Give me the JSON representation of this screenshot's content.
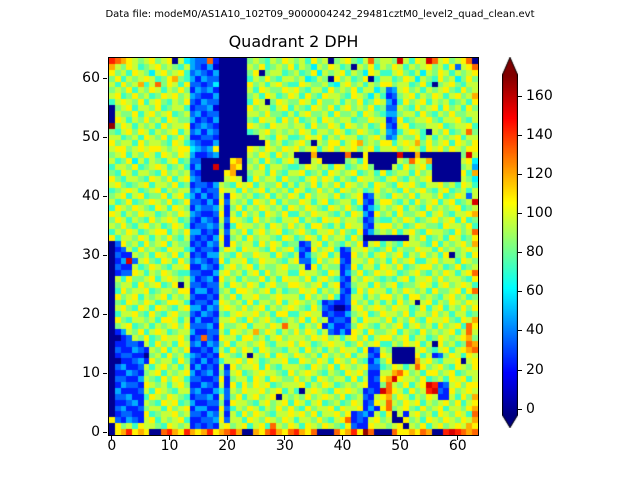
{
  "figure": {
    "suptitle": "Data file: modeM0/AS1A10_102T09_9000004242_29481cztM0_level2_quad_clean.evt",
    "title": "Quadrant 2 DPH",
    "background": "#ffffff"
  },
  "chart_data": {
    "type": "heatmap",
    "title": "Quadrant 2 DPH",
    "xlabel": "",
    "ylabel": "",
    "x_ticks": [
      0,
      10,
      20,
      30,
      40,
      50,
      60
    ],
    "y_ticks": [
      0,
      10,
      20,
      30,
      40,
      50,
      60
    ],
    "x_range": [
      -0.5,
      63.5
    ],
    "y_range": [
      -0.5,
      63.5
    ],
    "grid": false,
    "legend": "none",
    "colormap": "jet",
    "colorbar": {
      "ticks": [
        0,
        20,
        40,
        60,
        80,
        100,
        120,
        140,
        160
      ],
      "vmin": -3,
      "vmax": 171,
      "extend": "both"
    },
    "grid_size": [
      64,
      64
    ],
    "cell_value_step": 12,
    "cell_encoding": "each character is a hex digit; cell value in detector counts = digit * 12",
    "rows_top_to_bottom": [
      "CBA98789789085433B200000787687987869780789768B7887D8698DB89789B0",
      "A8798678978768432410000087967879687587986708796879868789786938 9B",
      "97869875897896343240000079078867867958789687598668976858798687 89",
      "79687898679A76424330000068797688785687097867906886798587697857 97",
      "86978A68B79869332350000097868976698778658978687997886796078976 88",
      "78796879868797243420000086987798976886978796885734897868789769 78",
      "89679786798978432240000078698679869769887698758623789687986897 8A",
      "68987968976879324330000069807987798697786879679842697896878678 69",
      "07896887967886233410000097886896876987968978796733876978969786 97",
      "08779689789678342330000088797768689778697786987644788697687977 88",
      "09868797869877423240000076988697967869878867798823967889768897 68",
      "E7986878697889234320000098769887886977986987867932896778896788 96",
      "768979868789683424300000678978787986887986798768436898608796 78B7",
      "88678698796797223320000000876986679896879886789734877968687896 88",
      "9788697887698643224000000009786789708799689A787996898A79789698 79",
      "89978989987899543490000098798798978968979897896889789869897987 99",
      "78968798698798422340000087986978000A00000B00900000D00A0000000 7D8",
      "8679586876896733000009A07869768970089000078690000087B98A000008 95",
      "688796789867862400D00A908796887667987869867897000869789600000 784",
      "769868876978783200009A007886976889678698789678696788697800000 96A",
      "97688769879689430000898069788697768979868769887689768789000008 75",
      "89767896887967233248769896877968687968796987869876989768897869 86",
      "67898678968788342339886978968786986797869878679787697897689678 68",
      "78968967796896424238298786796879869788796789238769879688796798 38",
      "867967898796793324293878698796877986896788693279976869789689 678D",
      "69879876986987243348279687987869879876987976246878968769787896 78",
      "98687988678798432239286978698796687988768698429786977896897 6889A",
      "79868769789867324328398769787688968769897887237668798678978969 67",
      "87976897867986233437269887869879786997686988328997867987769887 96",
      "687986789968794423283879689789678976889797692478796897698876 978B",
      "96887986879768323249278697887698679869788697000000008796786986 79",
      "039786978968772324382978869798677238968768792896876988769687 897A",
      "02386978769886423327986988769789632978962388976796877988697878 98",
      "03228786987968232448769779886976824789682297868978968797869078 69",
      "024D3897698697343239688967988768933697893288797869789668978869 87",
      "03228679876889224326897896877897782968772396886987967899786796 78",
      "023398687987663322489786896978866988769824796798986789768798 689B",
      "08697789689878423429786877968698879689763287987676896889797887 69",
      "07886978967908332338698798689779987896892378869789677898689789 86",
      "0697889678879924423786998789686779896878326979886879878697789 69B",
      "09789687896878322328796889778988869787962388687997869978768978 67",
      "07698798679986233249878696887968987862322397868686978089687987 98",
      "08976986987689442438987978968789876973200289789879886796896879 79",
      "06889769768977324327689889786996689882322478967988796887978688 67",
      "0976887869986824223889769789767879697823328698879687976988 97698A",
      "078967868789793334297789688798B8868792422379876878968978697 896B9",
      "0248796898678842233869878A798687979868324298697789687697878 968B8",
      "0023879679889723B3298869978689788879897868979689978968867987 89A7",
      "0223328697869834243796887897688979867898867978966879896809786 7BA",
      "03224328796879223248697986987768869786879886923870000897689 689AB",
      "02332207869786432329876808796987987869787968832980000968237986 98",
      "00223429788697324236889798678896698798698797624790000A89768890 89",
      "0342238689786824232829788969768887698796987893367986 8B9789769879",
      "02243278968789423427389678988769789876876989722 88AB978699789 6788",
      "0332248769798633223927886986987797869878869682 39AD9887967869 8968",
      "02433298786897224328296979896788896879867878922 7B879689DC238 9799",
      "04222386987688342246387988978968608987698987232DB986978CD329 7898",
      "03342269879876233428379689789087879789879678 3289A79868798228 697A",
      "02234287698967422337298876897896986896786798239 8B879896878979 689",
      "034223788697892442293687986879797697889698892429B78976978968 879A",
      "02332296788978332438286979876889897968897923428690828978698798 6B",
      "93243289687896223349388698798798688797689B232897800978698798 798A",
      "0978698876987823232897896896B87986987987693229887890879689789 8A9",
      "09AC9A900BCA9CA9AC9ABCA00A9BCA9BCA9B000B9AC9EB000B99A9BA00CDC BAB"
    ]
  }
}
